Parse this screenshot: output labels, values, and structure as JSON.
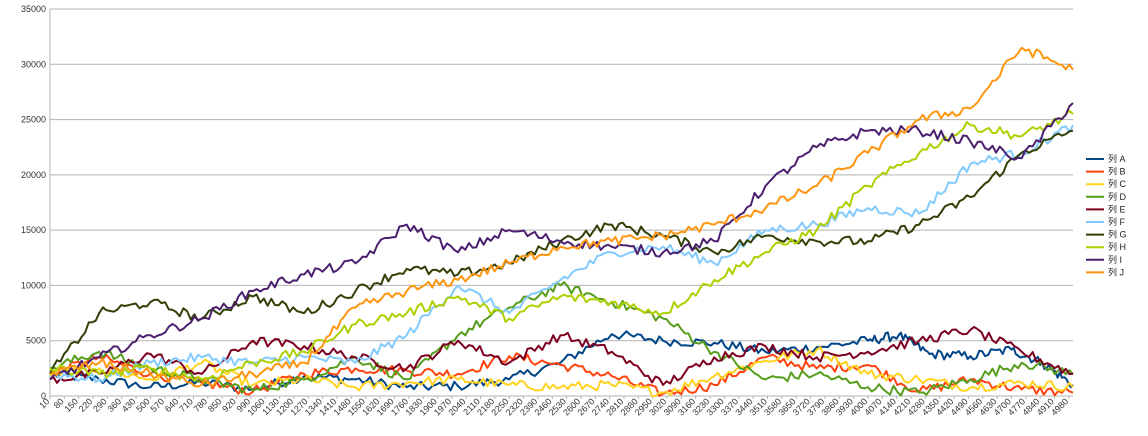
{
  "chart_data": {
    "type": "line",
    "title": "",
    "xlabel": "",
    "ylabel": "",
    "ylim": [
      0,
      35000
    ],
    "xlim": [
      10,
      5000
    ],
    "y_ticks": [
      0,
      5000,
      10000,
      15000,
      20000,
      25000,
      30000,
      35000
    ],
    "x_ticks": [
      10,
      80,
      150,
      220,
      290,
      360,
      430,
      500,
      570,
      640,
      710,
      780,
      850,
      920,
      990,
      1060,
      1130,
      1200,
      1270,
      1340,
      1410,
      1480,
      1550,
      1620,
      1690,
      1760,
      1830,
      1900,
      1970,
      2040,
      2110,
      2180,
      2250,
      2320,
      2390,
      2460,
      2530,
      2600,
      2670,
      2740,
      2810,
      2880,
      2950,
      3020,
      3090,
      3160,
      3230,
      3300,
      3370,
      3440,
      3510,
      3580,
      3650,
      3720,
      3790,
      3860,
      3930,
      4000,
      4070,
      4140,
      4210,
      4280,
      4350,
      4420,
      4490,
      4560,
      4630,
      4700,
      4770,
      4840,
      4910,
      4980
    ],
    "grid": "horizontal",
    "legend": "right",
    "series": [
      {
        "name": "列 A",
        "color": "#004586",
        "x": [
          10,
          250,
          500,
          750,
          1000,
          1250,
          1500,
          1750,
          2000,
          2250,
          2500,
          2750,
          3000,
          3250,
          3500,
          3750,
          4000,
          4150,
          4300,
          4500,
          4700,
          4850,
          5000
        ],
        "y": [
          2000,
          1500,
          800,
          1200,
          600,
          1800,
          1500,
          800,
          900,
          1500,
          3000,
          5600,
          5000,
          4800,
          4000,
          4400,
          5000,
          5500,
          3800,
          3600,
          4200,
          3000,
          1000
        ]
      },
      {
        "name": "列 B",
        "color": "#ff420e",
        "x": [
          10,
          250,
          500,
          750,
          1000,
          1250,
          1500,
          1750,
          2000,
          2250,
          2500,
          2750,
          3000,
          3250,
          3500,
          3750,
          4000,
          4250,
          4500,
          4750,
          5000
        ],
        "y": [
          2000,
          3500,
          2000,
          1200,
          400,
          2000,
          2500,
          2300,
          2000,
          3600,
          2800,
          1800,
          200,
          1000,
          3500,
          2500,
          2800,
          400,
          1500,
          600,
          300
        ]
      },
      {
        "name": "列 C",
        "color": "#ffd320",
        "x": [
          10,
          250,
          500,
          750,
          1000,
          1250,
          1500,
          1750,
          2000,
          2250,
          2500,
          2750,
          3000,
          3250,
          3500,
          3750,
          4000,
          4250,
          4500,
          4750,
          5000
        ],
        "y": [
          2000,
          2500,
          1500,
          3000,
          1000,
          1500,
          800,
          1200,
          1500,
          1000,
          800,
          1000,
          300,
          1800,
          3200,
          4200,
          2000,
          1500,
          800,
          1200,
          800
        ]
      },
      {
        "name": "列 D",
        "color": "#579d1c",
        "x": [
          10,
          250,
          500,
          750,
          1000,
          1250,
          1500,
          1750,
          2000,
          2250,
          2500,
          2750,
          3000,
          3250,
          3500,
          3750,
          4000,
          4250,
          4500,
          4750,
          5000
        ],
        "y": [
          2500,
          4000,
          2500,
          1500,
          500,
          1500,
          3500,
          1500,
          5500,
          8000,
          10000,
          8500,
          7000,
          4000,
          1500,
          2000,
          800,
          300,
          1500,
          3000,
          2000
        ]
      },
      {
        "name": "列 E",
        "color": "#7e0021",
        "x": [
          10,
          250,
          500,
          750,
          1000,
          1250,
          1500,
          1750,
          2000,
          2250,
          2500,
          2750,
          3000,
          3250,
          3500,
          3750,
          4000,
          4250,
          4500,
          4750,
          5000
        ],
        "y": [
          1500,
          2000,
          3800,
          2000,
          5000,
          4500,
          3500,
          2500,
          5000,
          3000,
          5500,
          4000,
          1000,
          3500,
          4500,
          3500,
          4000,
          5000,
          6000,
          4000,
          2000
        ]
      },
      {
        "name": "列 F",
        "color": "#83caff",
        "x": [
          10,
          250,
          500,
          750,
          1000,
          1250,
          1500,
          1750,
          2000,
          2250,
          2500,
          2750,
          3000,
          3250,
          3500,
          3750,
          4000,
          4250,
          4500,
          4750,
          5000
        ],
        "y": [
          2000,
          1500,
          3000,
          3500,
          3000,
          3500,
          3000,
          5500,
          10000,
          7500,
          10500,
          13000,
          13500,
          12000,
          15000,
          15500,
          17000,
          16500,
          21000,
          22000,
          24500
        ]
      },
      {
        "name": "列 G",
        "color": "#314004",
        "x": [
          10,
          250,
          500,
          750,
          1000,
          1250,
          1500,
          1750,
          2000,
          2250,
          2500,
          2750,
          3000,
          3250,
          3500,
          3750,
          4000,
          4250,
          4500,
          4750,
          5000
        ],
        "y": [
          2000,
          7500,
          8500,
          7000,
          9000,
          7500,
          9500,
          11500,
          11000,
          12000,
          14000,
          15500,
          14500,
          13000,
          14500,
          14000,
          14000,
          15500,
          18000,
          22000,
          24000
        ]
      },
      {
        "name": "列 H",
        "color": "#aecf00",
        "x": [
          10,
          250,
          500,
          750,
          1000,
          1250,
          1500,
          1750,
          2000,
          2250,
          2500,
          2750,
          3000,
          3250,
          3500,
          3750,
          4000,
          4250,
          4500,
          4750,
          5000
        ],
        "y": [
          2500,
          2000,
          2500,
          1500,
          3000,
          4000,
          6500,
          7500,
          9000,
          7000,
          9000,
          8500,
          7500,
          10500,
          13000,
          15000,
          19000,
          22000,
          24500,
          23500,
          25500
        ]
      },
      {
        "name": "列 I",
        "color": "#4b1f6f",
        "x": [
          10,
          250,
          500,
          750,
          1000,
          1250,
          1500,
          1750,
          2000,
          2250,
          2500,
          2750,
          3000,
          3250,
          3500,
          3750,
          4000,
          4250,
          4500,
          4750,
          5000
        ],
        "y": [
          1500,
          3500,
          5500,
          7000,
          9500,
          11000,
          12000,
          15500,
          13000,
          15000,
          14000,
          13500,
          13000,
          14000,
          19000,
          22500,
          24000,
          24000,
          23000,
          21500,
          26500
        ]
      },
      {
        "name": "列 J",
        "color": "#ff950e",
        "x": [
          10,
          250,
          500,
          750,
          1000,
          1250,
          1500,
          1750,
          2000,
          2250,
          2500,
          2750,
          3000,
          3250,
          3500,
          3750,
          4000,
          4250,
          4500,
          4750,
          5000
        ],
        "y": [
          2000,
          3000,
          2000,
          1000,
          2000,
          3000,
          8000,
          9500,
          10500,
          12000,
          13500,
          14000,
          14500,
          15500,
          17000,
          19000,
          22000,
          25000,
          26000,
          31500,
          29500
        ]
      }
    ]
  }
}
